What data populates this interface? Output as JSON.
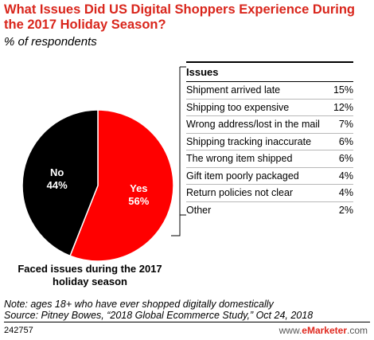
{
  "header": {
    "title": "What Issues Did US Digital Shoppers Experience During the 2017 Holiday Season?",
    "subtitle": "% of respondents"
  },
  "chart_data": [
    {
      "type": "pie",
      "caption": "Faced issues during the 2017 holiday season",
      "slices": [
        {
          "label": "Yes",
          "value": 56,
          "display": "56%",
          "color": "#ff0000"
        },
        {
          "label": "No",
          "value": 44,
          "display": "44%",
          "color": "#000000"
        }
      ]
    },
    {
      "type": "table",
      "header": "Issues",
      "rows": [
        {
          "label": "Shipment arrived late",
          "value": 15,
          "display": "15%"
        },
        {
          "label": "Shipping too expensive",
          "value": 12,
          "display": "12%"
        },
        {
          "label": "Wrong address/lost in the mail",
          "value": 7,
          "display": "7%"
        },
        {
          "label": "Shipping tracking inaccurate",
          "value": 6,
          "display": "6%"
        },
        {
          "label": "The wrong item shipped",
          "value": 6,
          "display": "6%"
        },
        {
          "label": "Gift item poorly packaged",
          "value": 4,
          "display": "4%"
        },
        {
          "label": "Return policies not clear",
          "value": 4,
          "display": "4%"
        },
        {
          "label": "Other",
          "value": 2,
          "display": "2%"
        }
      ]
    }
  ],
  "footer": {
    "note_line1": "Note: ages 18+ who have ever shopped digitally domestically",
    "note_line2": "Source: Pitney Bowes, “2018 Global Ecommerce Study,” Oct 24, 2018",
    "chart_id": "242757",
    "brand_prefix": "www.",
    "brand_name": "eMarketer",
    "brand_suffix": ".com"
  }
}
